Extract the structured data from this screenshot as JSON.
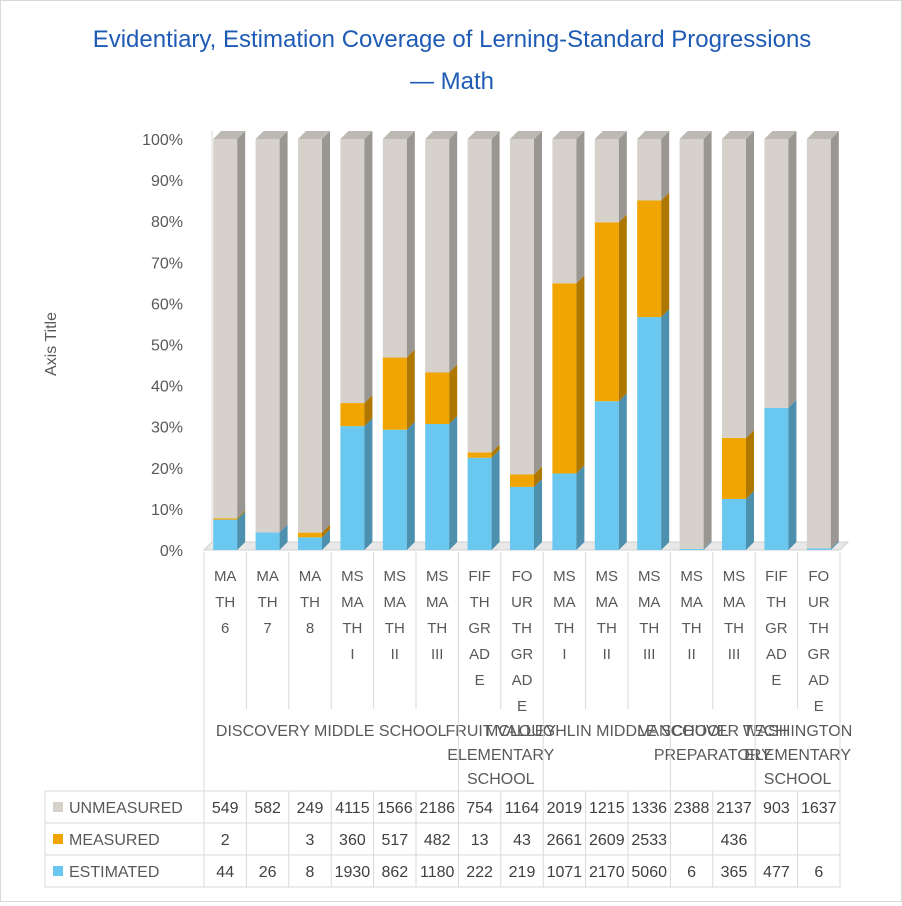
{
  "chart_data": {
    "type": "bar",
    "stacked": "percent",
    "title": "Evidentiary, Estimation Coverage of Lerning-Standard Progressions",
    "title_suffix": "— Math",
    "ylabel": "Axis Title",
    "ylim": [
      0,
      100
    ],
    "y_ticks": [
      "0%",
      "10%",
      "20%",
      "30%",
      "40%",
      "50%",
      "60%",
      "70%",
      "80%",
      "90%",
      "100%"
    ],
    "grid": false,
    "legend": "bottom-table",
    "categories": [
      {
        "label": "MATH 6",
        "lines": [
          "MA",
          "TH",
          "6"
        ]
      },
      {
        "label": "MATH 7",
        "lines": [
          "MA",
          "TH",
          "7"
        ]
      },
      {
        "label": "MATH 8",
        "lines": [
          "MA",
          "TH",
          "8"
        ]
      },
      {
        "label": "MS MATH I",
        "lines": [
          "MS",
          "MA",
          "TH",
          "I"
        ]
      },
      {
        "label": "MS MATH II",
        "lines": [
          "MS",
          "MA",
          "TH",
          "II"
        ]
      },
      {
        "label": "MS MATH III",
        "lines": [
          "MS",
          "MA",
          "TH",
          "III"
        ]
      },
      {
        "label": "FIFTH GRADE",
        "lines": [
          "FIF",
          "TH",
          "GR",
          "AD",
          "E"
        ]
      },
      {
        "label": "FOURTH GRADE",
        "lines": [
          "FO",
          "UR",
          "TH",
          "GR",
          "AD",
          "E"
        ]
      },
      {
        "label": "MS MATH I",
        "lines": [
          "MS",
          "MA",
          "TH",
          "I"
        ]
      },
      {
        "label": "MS MATH II",
        "lines": [
          "MS",
          "MA",
          "TH",
          "II"
        ]
      },
      {
        "label": "MS MATH III",
        "lines": [
          "MS",
          "MA",
          "TH",
          "III"
        ]
      },
      {
        "label": "MS MATH II",
        "lines": [
          "MS",
          "MA",
          "TH",
          "II"
        ]
      },
      {
        "label": "MS MATH III",
        "lines": [
          "MS",
          "MA",
          "TH",
          "III"
        ]
      },
      {
        "label": "FIFTH GRADE",
        "lines": [
          "FIF",
          "TH",
          "GR",
          "AD",
          "E"
        ]
      },
      {
        "label": "FOURTH GRADE",
        "lines": [
          "FO",
          "UR",
          "TH",
          "GR",
          "AD",
          "E"
        ]
      }
    ],
    "groups": [
      {
        "label": "DISCOVERY MIDDLE SCHOOL",
        "lines": [
          "DISCOVERY MIDDLE SCHOOL"
        ],
        "start": 0,
        "end": 5
      },
      {
        "label": "FRUIT VALLEY ELEMENTARY SCHOOL",
        "lines": [
          "FRUIT VALLEY",
          "ELEMENTARY",
          "SCHOOL"
        ],
        "start": 6,
        "end": 7
      },
      {
        "label": "MCLOUGHLIN MIDDLE SCHOOL",
        "lines": [
          "MCLOUGHLIN MIDDLE SCHOOL"
        ],
        "start": 8,
        "end": 10
      },
      {
        "label": "VANCOUVER TECH PREPARATORY",
        "lines": [
          "VANCOUVER TECH",
          "PREPARATORY"
        ],
        "start": 11,
        "end": 12
      },
      {
        "label": "WASHINGTON ELEMENTARY SCHOOL",
        "lines": [
          "WASHINGTON",
          "ELEMENTARY",
          "SCHOOL"
        ],
        "start": 13,
        "end": 14
      }
    ],
    "series": [
      {
        "name": "UNMEASURED",
        "color": "#d6d2cb",
        "values": [
          549,
          582,
          249,
          4115,
          1566,
          2186,
          754,
          1164,
          2019,
          1215,
          1336,
          2388,
          2137,
          903,
          1637
        ]
      },
      {
        "name": "MEASURED",
        "color": "#f0a500",
        "values": [
          2,
          null,
          3,
          360,
          517,
          482,
          13,
          43,
          2661,
          2609,
          2533,
          null,
          436,
          null,
          null
        ]
      },
      {
        "name": "ESTIMATED",
        "color": "#6ac8f0",
        "values": [
          44,
          26,
          8,
          1930,
          862,
          1180,
          222,
          219,
          1071,
          2170,
          5060,
          6,
          365,
          477,
          6
        ]
      }
    ]
  }
}
